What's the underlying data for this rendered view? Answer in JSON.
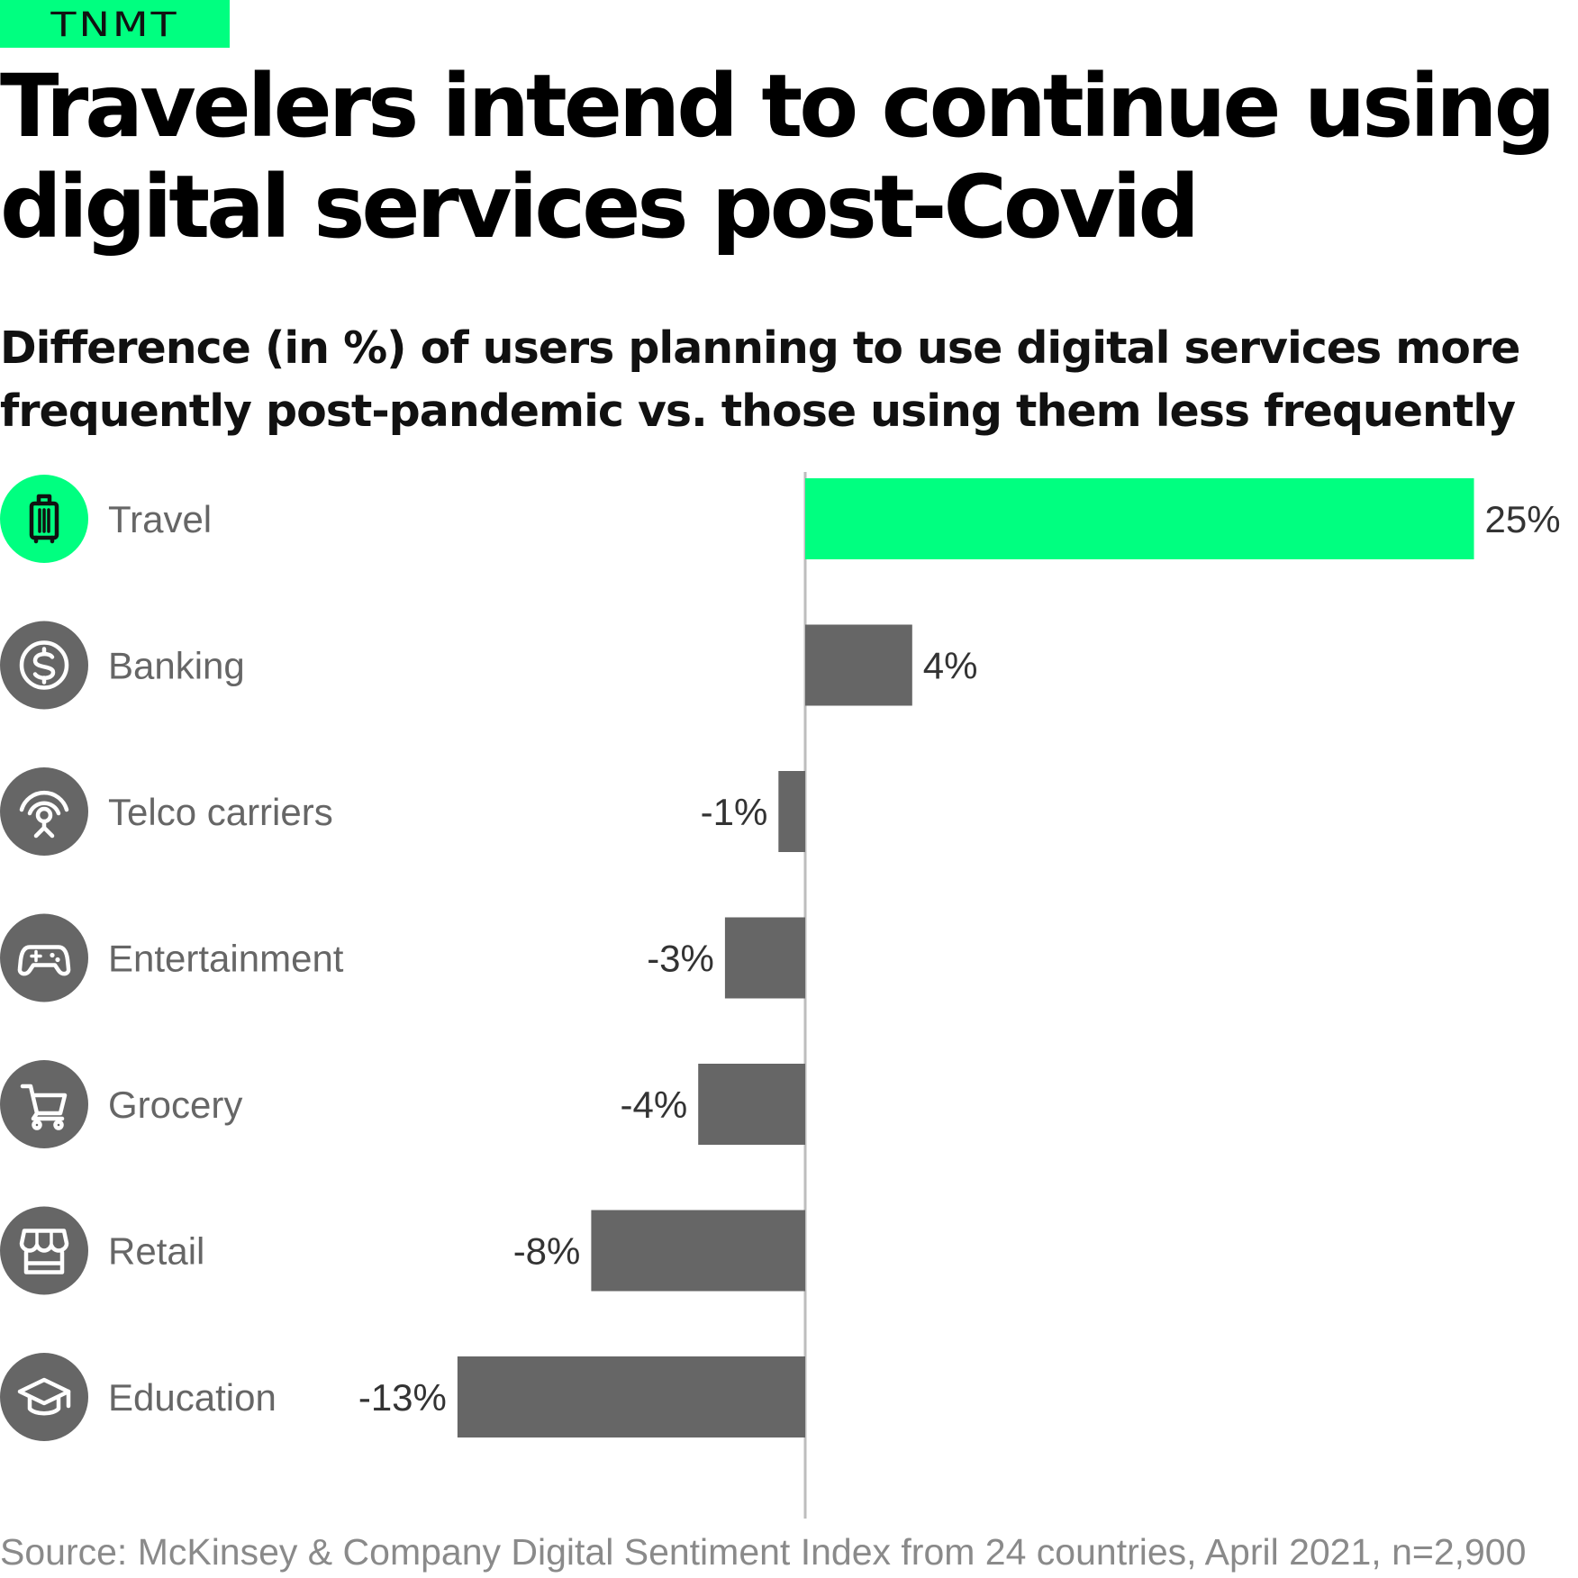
{
  "brand": "TNMT",
  "header": {
    "title": "Travelers intend to continue using digital services post-Covid",
    "subtitle": "Difference (in %) of users planning to use digital services more frequently post-pandemic vs. those using them less frequently"
  },
  "source": "Source: McKinsey & Company Digital Sentiment Index from 24 countries, April 2021, n=2,900",
  "colors": {
    "highlight": "#00ff80",
    "bar": "#666666",
    "icon_bg": "#666666",
    "axis": "#bdbdbd",
    "label": "#666666",
    "value": "#333333"
  },
  "chart_data": {
    "type": "bar",
    "orientation": "horizontal",
    "categories": [
      "Travel",
      "Banking",
      "Telco carriers",
      "Entertainment",
      "Grocery",
      "Retail",
      "Education"
    ],
    "icons": [
      "suitcase-icon",
      "dollar-coin-icon",
      "antenna-signal-icon",
      "gamepad-icon",
      "shopping-cart-icon",
      "storefront-icon",
      "graduation-cap-icon"
    ],
    "values": [
      25,
      4,
      -1,
      -3,
      -4,
      -8,
      -13
    ],
    "value_labels": [
      "25%",
      "4%",
      "-1%",
      "-3%",
      "-4%",
      "-8%",
      "-13%"
    ],
    "highlight_index": 0,
    "unit": "%",
    "xlim": [
      -13,
      25
    ],
    "grid": false
  }
}
